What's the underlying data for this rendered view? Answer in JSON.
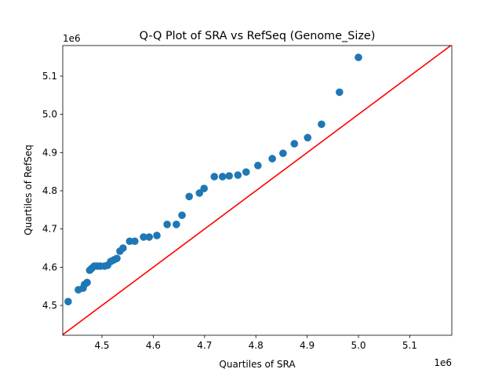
{
  "chart_data": {
    "type": "scatter",
    "title": "Q-Q Plot of SRA vs RefSeq (Genome_Size)",
    "xlabel": "Quartiles of SRA",
    "ylabel": "Quartiles of RefSeq",
    "x_offset_label": "1e6",
    "y_offset_label": "1e6",
    "xlim": [
      4.4235,
      5.182
    ],
    "ylim": [
      4.422,
      5.18
    ],
    "xticks": [
      4.5,
      4.6,
      4.7,
      4.8,
      4.9,
      5.0,
      5.1
    ],
    "xtick_labels": [
      "4.5",
      "4.6",
      "4.7",
      "4.8",
      "4.9",
      "5.0",
      "5.1"
    ],
    "yticks": [
      4.5,
      4.6,
      4.7,
      4.8,
      4.9,
      5.0,
      5.1
    ],
    "ytick_labels": [
      "4.5",
      "4.6",
      "4.7",
      "4.8",
      "4.9",
      "5.0",
      "5.1"
    ],
    "grid": false,
    "point_color": "#1f77b4",
    "reference_line": {
      "type": "y=x",
      "color": "#ff0000"
    },
    "points": [
      [
        4.434,
        4.51
      ],
      [
        4.454,
        4.541
      ],
      [
        4.463,
        4.545
      ],
      [
        4.466,
        4.555
      ],
      [
        4.471,
        4.56
      ],
      [
        4.476,
        4.592
      ],
      [
        4.48,
        4.597
      ],
      [
        4.485,
        4.603
      ],
      [
        4.491,
        4.603
      ],
      [
        4.497,
        4.603
      ],
      [
        4.505,
        4.603
      ],
      [
        4.511,
        4.605
      ],
      [
        4.517,
        4.615
      ],
      [
        4.523,
        4.619
      ],
      [
        4.529,
        4.623
      ],
      [
        4.535,
        4.642
      ],
      [
        4.541,
        4.65
      ],
      [
        4.554,
        4.668
      ],
      [
        4.564,
        4.668
      ],
      [
        4.581,
        4.679
      ],
      [
        4.592,
        4.679
      ],
      [
        4.607,
        4.683
      ],
      [
        4.627,
        4.712
      ],
      [
        4.645,
        4.712
      ],
      [
        4.656,
        4.736
      ],
      [
        4.67,
        4.785
      ],
      [
        4.69,
        4.794
      ],
      [
        4.699,
        4.806
      ],
      [
        4.719,
        4.837
      ],
      [
        4.735,
        4.837
      ],
      [
        4.748,
        4.839
      ],
      [
        4.765,
        4.841
      ],
      [
        4.781,
        4.849
      ],
      [
        4.804,
        4.866
      ],
      [
        4.832,
        4.884
      ],
      [
        4.853,
        4.898
      ],
      [
        4.875,
        4.923
      ],
      [
        4.901,
        4.939
      ],
      [
        4.928,
        4.974
      ],
      [
        4.963,
        5.058
      ],
      [
        5.0,
        5.149
      ]
    ]
  }
}
